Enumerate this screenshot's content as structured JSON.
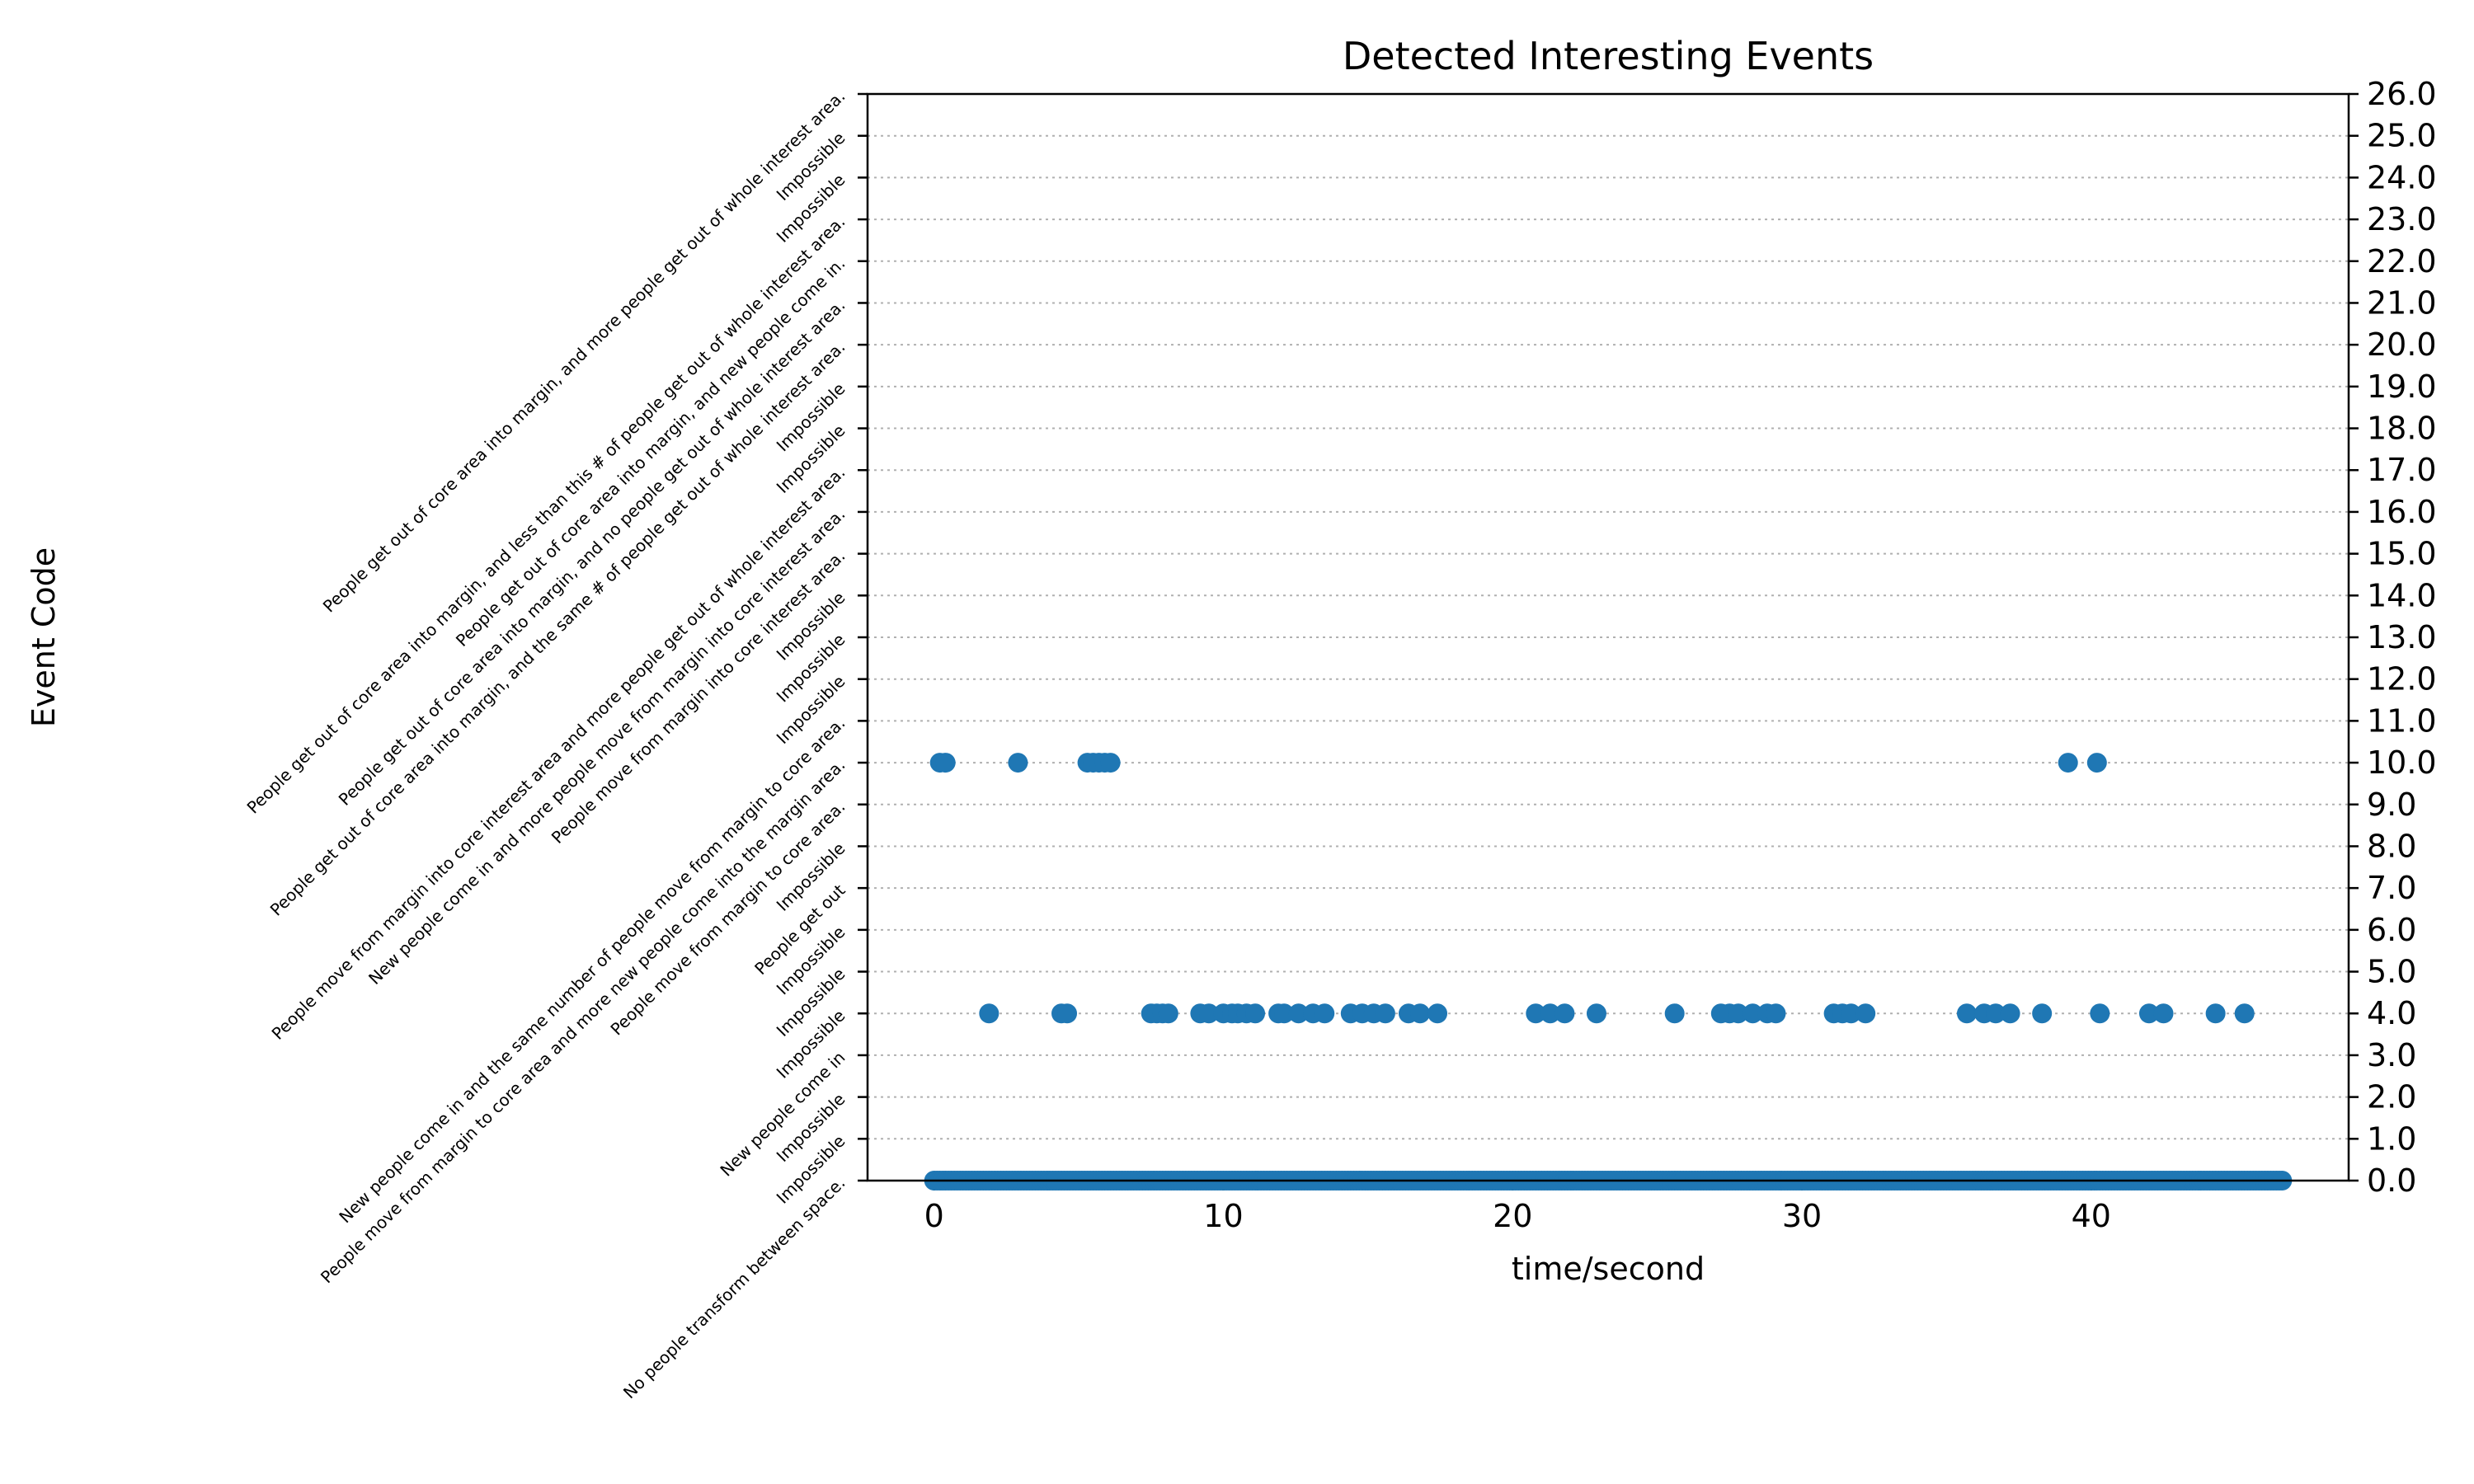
{
  "chart_data": {
    "type": "scatter",
    "title": "Detected Interesting Events",
    "xlabel": "time/second",
    "ylabel": "Event Code",
    "xlim": [
      -2.3,
      48.9
    ],
    "ylim": [
      0,
      26
    ],
    "x_ticks": [
      0,
      10,
      20,
      30,
      40
    ],
    "y_ticks_right": [
      "0.0",
      "1.0",
      "2.0",
      "3.0",
      "4.0",
      "5.0",
      "6.0",
      "7.0",
      "8.0",
      "9.0",
      "10.0",
      "11.0",
      "12.0",
      "13.0",
      "14.0",
      "15.0",
      "16.0",
      "17.0",
      "18.0",
      "19.0",
      "20.0",
      "21.0",
      "22.0",
      "23.0",
      "24.0",
      "25.0",
      "26.0"
    ],
    "y_labels_left": [
      "No people transform between space.",
      "Impossible",
      "Impossible",
      "New people come in",
      "Impossible",
      "Impossible",
      "Impossible",
      "People get out",
      "Impossible",
      "People move from margin to core area.",
      "People move from margin to core area and more new people come into the margin  area.",
      "New people come in and the same number of people move from margin to core area.",
      "Impossible",
      "Impossible",
      "Impossible",
      "People move from margin into core interest area.",
      "New people come in and more people move from margin into core interest area.",
      "People move from margin into core interest area and more people get out of whole interest area.",
      "Impossible",
      "Impossible",
      "People get out of core area into margin, and the same # of people get out of whole interest area.",
      "People get out of core area into margin, and no people get out of whole interest area.",
      "People get out of core area into margin, and new people come in.",
      "People get out of core area into margin, and less than this # of people get out of whole interest area.",
      "Impossible",
      "Impossible",
      "People get out of core area into margin, and more people get out of whole interest area."
    ],
    "grid": "horizontal dotted",
    "marker_color": "#1f77b4",
    "series": [
      {
        "y": 10,
        "x": [
          0.2,
          0.4,
          2.9,
          5.3,
          5.5,
          5.7,
          5.9,
          6.1,
          39.2,
          40.2
        ]
      },
      {
        "y": 4,
        "x": [
          1.9,
          4.4,
          4.6,
          7.5,
          7.7,
          7.9,
          8.1,
          9.2,
          9.5,
          10.0,
          10.3,
          10.5,
          10.8,
          11.1,
          11.9,
          12.1,
          12.6,
          13.1,
          13.5,
          14.4,
          14.8,
          15.2,
          15.6,
          16.4,
          16.8,
          17.4,
          20.8,
          21.3,
          21.8,
          22.9,
          25.6,
          27.2,
          27.5,
          27.8,
          28.3,
          28.8,
          29.1,
          31.1,
          31.4,
          31.7,
          32.2,
          35.7,
          36.3,
          36.7,
          37.2,
          38.3,
          40.3,
          42.0,
          42.5,
          44.3,
          45.3
        ]
      },
      {
        "y": 0,
        "x_range": [
          0,
          46.6
        ],
        "dense": true
      }
    ]
  }
}
